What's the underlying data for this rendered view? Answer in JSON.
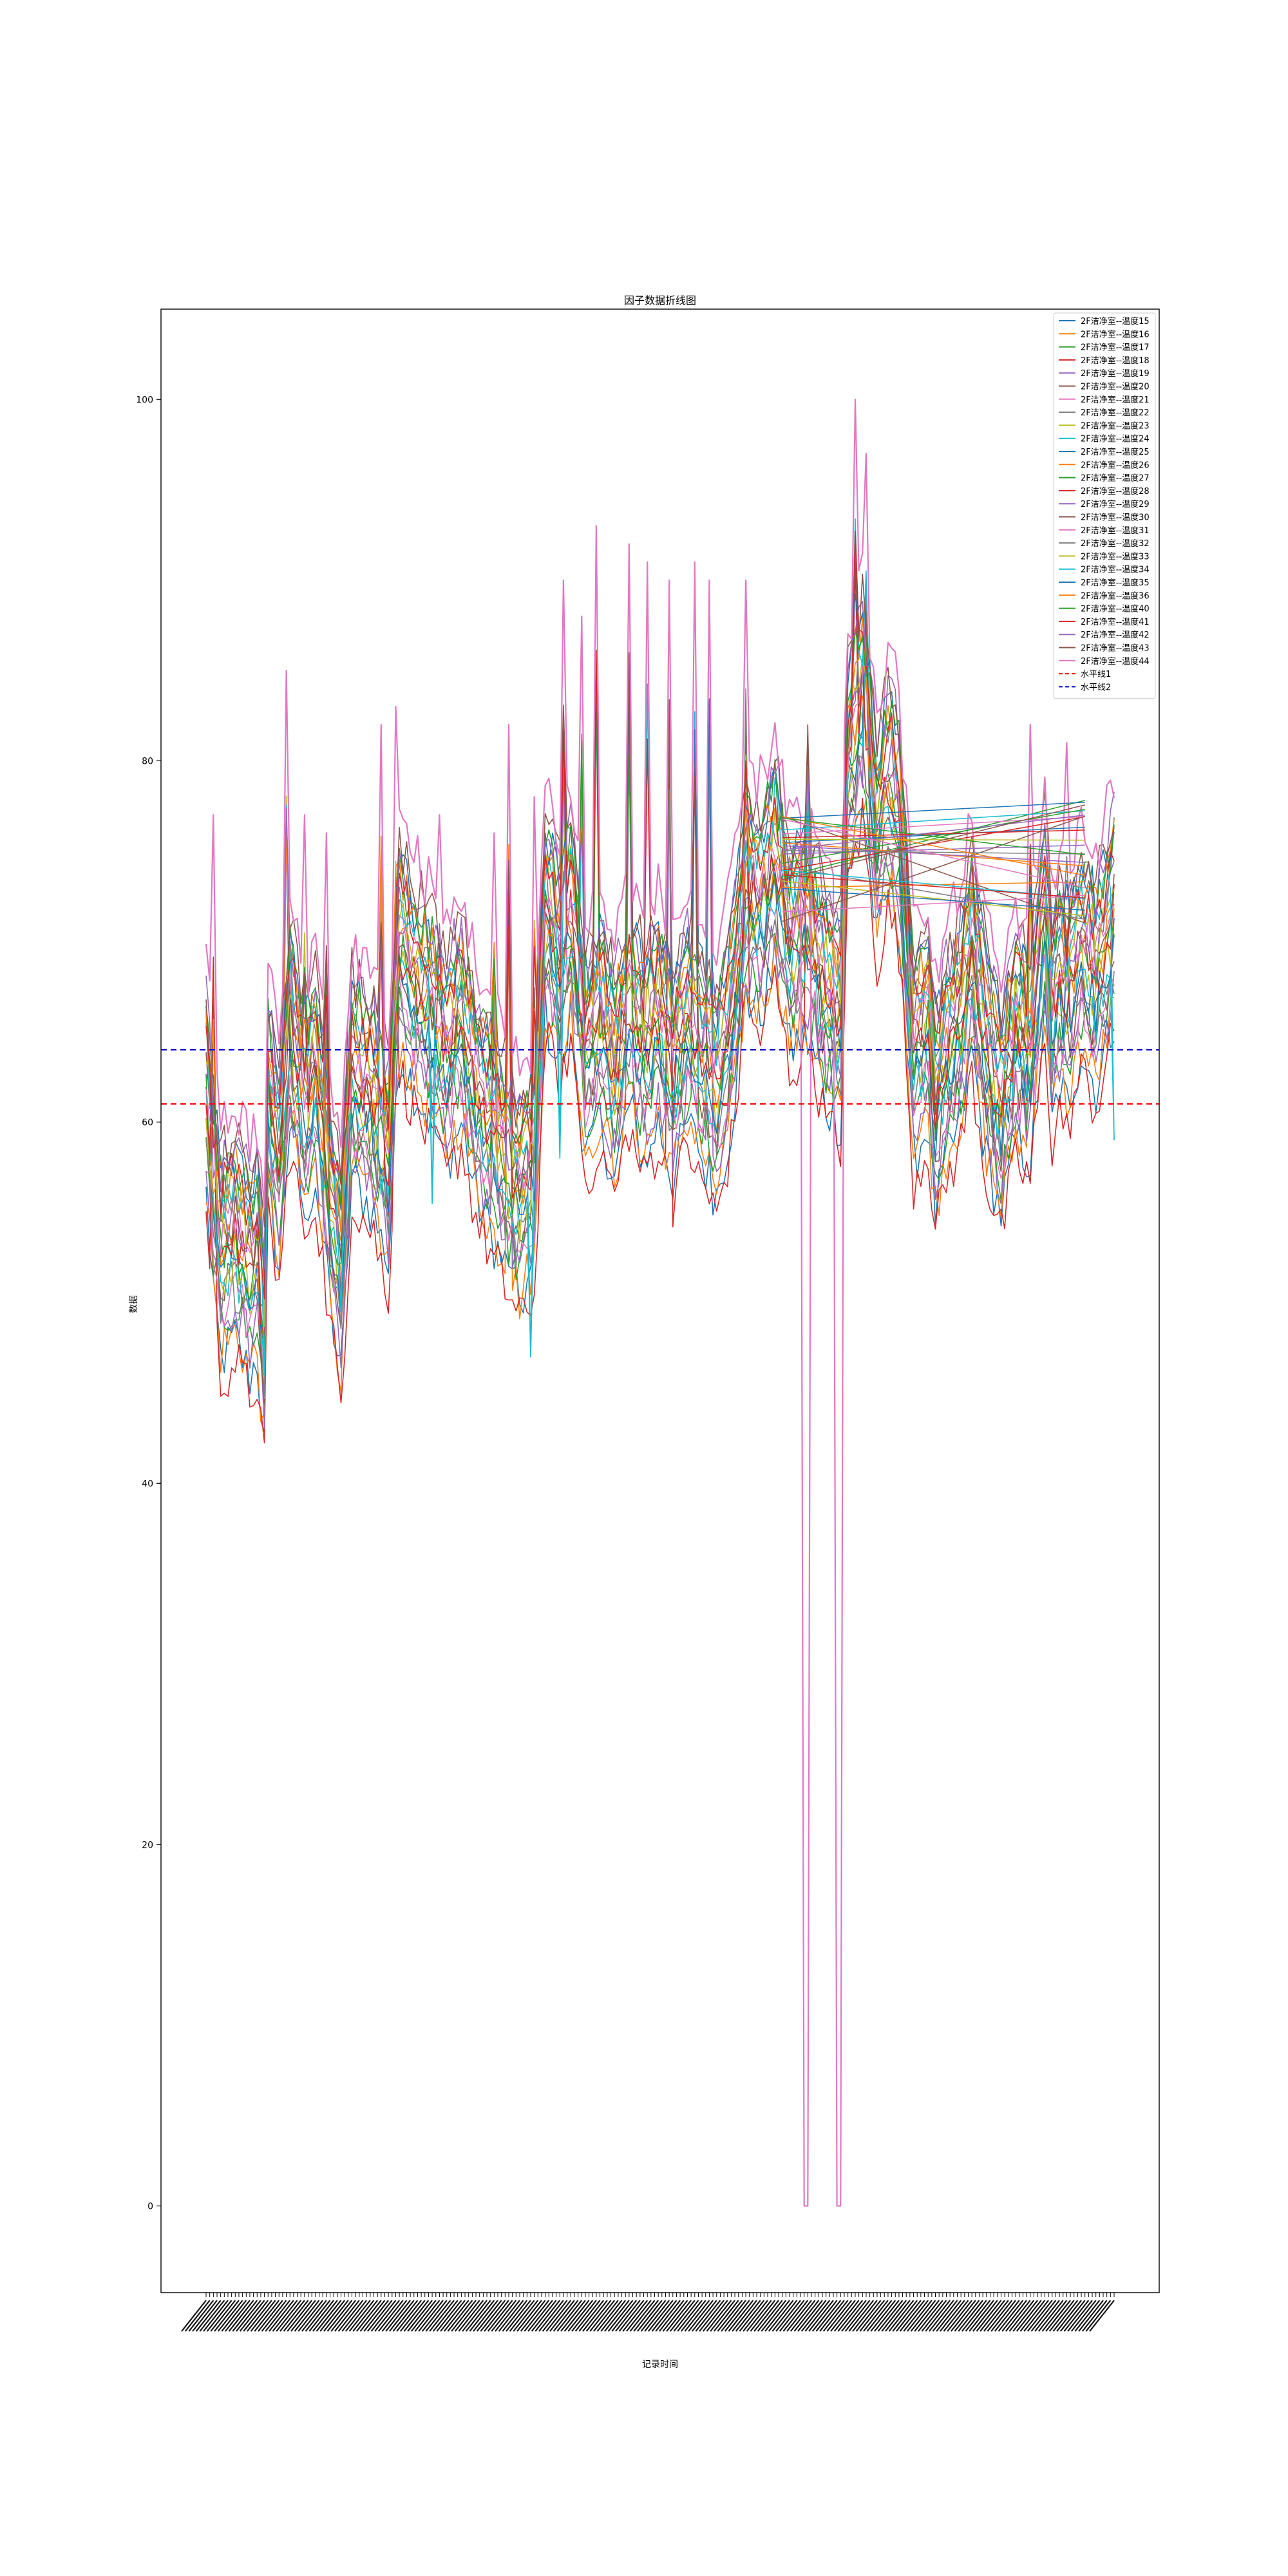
{
  "chart_data": {
    "type": "line",
    "title": "因子数据折线图",
    "xlabel": "记录时间",
    "ylabel": "数据",
    "ylim": [
      -4.8,
      105
    ],
    "yticks": [
      0,
      20,
      40,
      60,
      80,
      100
    ],
    "grid": false,
    "legend_position": "top-right",
    "x_points": 250,
    "xtick_labels_note": "x tick labels are dense overlapping timestamps and are illegible",
    "base_profile": [
      [
        0,
        62
      ],
      [
        2,
        57
      ],
      [
        4,
        53
      ],
      [
        8,
        54
      ],
      [
        12,
        52
      ],
      [
        14,
        53
      ],
      [
        16,
        48
      ],
      [
        17,
        62
      ],
      [
        20,
        58
      ],
      [
        23,
        66
      ],
      [
        27,
        61
      ],
      [
        30,
        63
      ],
      [
        34,
        56
      ],
      [
        37,
        52
      ],
      [
        40,
        63
      ],
      [
        43,
        62
      ],
      [
        46,
        61
      ],
      [
        50,
        58
      ],
      [
        53,
        70
      ],
      [
        57,
        68
      ],
      [
        62,
        66
      ],
      [
        66,
        64
      ],
      [
        70,
        66
      ],
      [
        74,
        62
      ],
      [
        78,
        60
      ],
      [
        82,
        58
      ],
      [
        86,
        56
      ],
      [
        90,
        58
      ],
      [
        93,
        72
      ],
      [
        97,
        69
      ],
      [
        100,
        72
      ],
      [
        104,
        64
      ],
      [
        108,
        66
      ],
      [
        112,
        63
      ],
      [
        116,
        67
      ],
      [
        120,
        64
      ],
      [
        124,
        66
      ],
      [
        128,
        63
      ],
      [
        132,
        66
      ],
      [
        136,
        64
      ],
      [
        140,
        62
      ],
      [
        144,
        66
      ],
      [
        148,
        73
      ],
      [
        152,
        72
      ],
      [
        156,
        75
      ],
      [
        160,
        70
      ],
      [
        164,
        71
      ],
      [
        168,
        69
      ],
      [
        170,
        67
      ],
      [
        174,
        66
      ],
      [
        176,
        80
      ],
      [
        180,
        84
      ],
      [
        184,
        76
      ],
      [
        187,
        79
      ],
      [
        190,
        77
      ],
      [
        194,
        64
      ],
      [
        198,
        66
      ],
      [
        200,
        61
      ],
      [
        203,
        64
      ],
      [
        207,
        66
      ],
      [
        210,
        70
      ],
      [
        214,
        64
      ],
      [
        218,
        61
      ],
      [
        222,
        65
      ],
      [
        226,
        64
      ],
      [
        230,
        72
      ],
      [
        232,
        66
      ],
      [
        234,
        68
      ],
      [
        236,
        67
      ],
      [
        240,
        70
      ],
      [
        244,
        68
      ],
      [
        249,
        72
      ]
    ],
    "series": [
      {
        "name": "2F洁净室--温度15",
        "color": "#1f77b4"
      },
      {
        "name": "2F洁净室--温度16",
        "color": "#ff7f0e"
      },
      {
        "name": "2F洁净室--温度17",
        "color": "#2ca02c"
      },
      {
        "name": "2F洁净室--温度18",
        "color": "#d62728"
      },
      {
        "name": "2F洁净室--温度19",
        "color": "#9467bd"
      },
      {
        "name": "2F洁净室--温度20",
        "color": "#8c564b"
      },
      {
        "name": "2F洁净室--温度21",
        "color": "#e377c2"
      },
      {
        "name": "2F洁净室--温度22",
        "color": "#7f7f7f"
      },
      {
        "name": "2F洁净室--温度23",
        "color": "#bcbd22"
      },
      {
        "name": "2F洁净室--温度24",
        "color": "#17becf"
      },
      {
        "name": "2F洁净室--温度25",
        "color": "#1f77b4"
      },
      {
        "name": "2F洁净室--温度26",
        "color": "#ff7f0e"
      },
      {
        "name": "2F洁净室--温度27",
        "color": "#2ca02c"
      },
      {
        "name": "2F洁净室--温度28",
        "color": "#d62728"
      },
      {
        "name": "2F洁净室--温度29",
        "color": "#9467bd"
      },
      {
        "name": "2F洁净室--温度30",
        "color": "#8c564b"
      },
      {
        "name": "2F洁净室--温度31",
        "color": "#e377c2"
      },
      {
        "name": "2F洁净室--温度32",
        "color": "#7f7f7f"
      },
      {
        "name": "2F洁净室--温度33",
        "color": "#bcbd22"
      },
      {
        "name": "2F洁净室--温度34",
        "color": "#17becf"
      },
      {
        "name": "2F洁净室--温度35",
        "color": "#1f77b4"
      },
      {
        "name": "2F洁净室--温度36",
        "color": "#ff7f0e"
      },
      {
        "name": "2F洁净室--温度40",
        "color": "#2ca02c"
      },
      {
        "name": "2F洁净室--温度41",
        "color": "#d62728"
      },
      {
        "name": "2F洁净室--温度42",
        "color": "#9467bd"
      },
      {
        "name": "2F洁净室--温度43",
        "color": "#8c564b"
      },
      {
        "name": "2F洁净室--温度44",
        "color": "#e377c2"
      }
    ],
    "spikes": [
      {
        "x": 2,
        "y": 77
      },
      {
        "x": 22,
        "y": 85
      },
      {
        "x": 27,
        "y": 77
      },
      {
        "x": 33,
        "y": 76
      },
      {
        "x": 48,
        "y": 82
      },
      {
        "x": 52,
        "y": 83
      },
      {
        "x": 64,
        "y": 77
      },
      {
        "x": 79,
        "y": 76
      },
      {
        "x": 83,
        "y": 82
      },
      {
        "x": 90,
        "y": 78
      },
      {
        "x": 98,
        "y": 90
      },
      {
        "x": 103,
        "y": 88
      },
      {
        "x": 107,
        "y": 93
      },
      {
        "x": 116,
        "y": 92
      },
      {
        "x": 121,
        "y": 91
      },
      {
        "x": 127,
        "y": 90
      },
      {
        "x": 134,
        "y": 91
      },
      {
        "x": 138,
        "y": 90
      },
      {
        "x": 148,
        "y": 90
      },
      {
        "x": 165,
        "y": 88
      },
      {
        "x": 178,
        "y": 100
      },
      {
        "x": 181,
        "y": 97
      },
      {
        "x": 226,
        "y": 82
      },
      {
        "x": 236,
        "y": 81
      }
    ],
    "dips": [
      {
        "x": 16,
        "y": 46
      },
      {
        "x": 37,
        "y": 49.5
      },
      {
        "x": 89,
        "y": 47
      },
      {
        "x": 62,
        "y": 55.5
      },
      {
        "x": 97,
        "y": 58
      },
      {
        "x": 249,
        "y": 59
      }
    ],
    "drops_to_zero": [
      {
        "series": "2F洁净室--温度44",
        "x_from": 164,
        "x_to": 174,
        "y": 0
      }
    ],
    "reference_lines": [
      {
        "name": "水平线1",
        "y": 61,
        "color": "#ff0000",
        "style": "dashed"
      },
      {
        "name": "水平线2",
        "y": 64,
        "color": "#0000cc",
        "style": "dashed"
      }
    ]
  }
}
